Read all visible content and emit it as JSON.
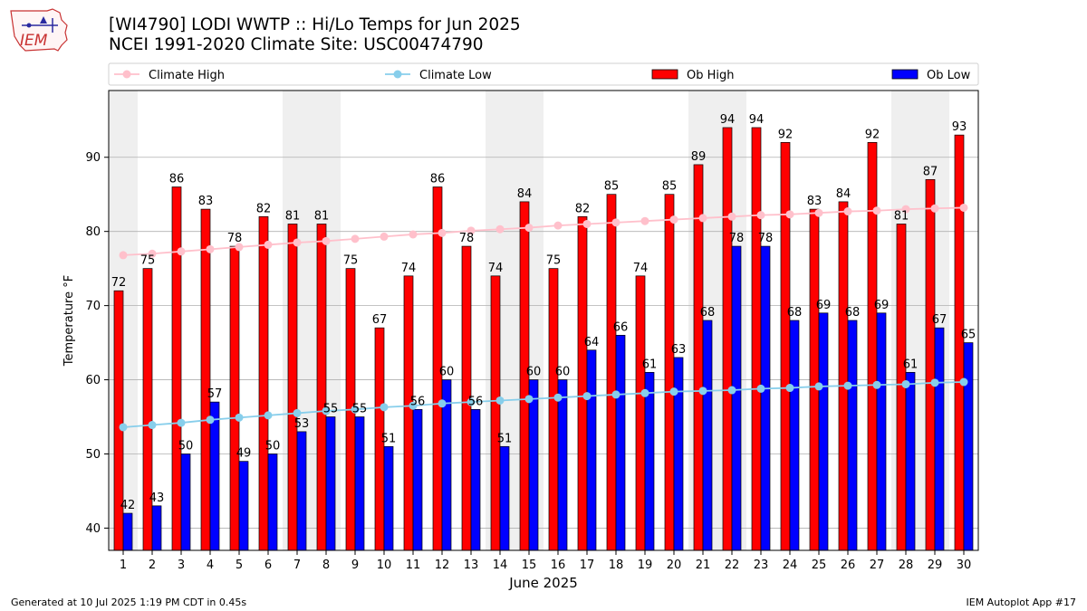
{
  "logo": {
    "text": "IEM"
  },
  "header": {
    "title": "[WI4790] LODI WWTP :: Hi/Lo Temps for Jun 2025",
    "subtitle": "NCEI 1991-2020 Climate Site: USC00474790"
  },
  "footer": {
    "generated": "Generated at 10 Jul 2025 1:19 PM CDT in 0.45s",
    "app": "IEM Autoplot App #17"
  },
  "chart_data": {
    "type": "bar",
    "xlabel": "June 2025",
    "ylabel": "Temperature °F",
    "ylim": [
      37,
      99
    ],
    "yticks": [
      40,
      50,
      60,
      70,
      80,
      90
    ],
    "grid": true,
    "legend_position": "top",
    "categories": [
      "1",
      "2",
      "3",
      "4",
      "5",
      "6",
      "7",
      "8",
      "9",
      "10",
      "11",
      "12",
      "13",
      "14",
      "15",
      "16",
      "17",
      "18",
      "19",
      "20",
      "21",
      "22",
      "23",
      "24",
      "25",
      "26",
      "27",
      "28",
      "29",
      "30"
    ],
    "shaded_weekend_days": [
      1,
      7,
      8,
      14,
      15,
      21,
      22,
      28,
      29
    ],
    "series": [
      {
        "name": "Ob High",
        "kind": "bar",
        "color": "#ff0000",
        "values": [
          72,
          75,
          86,
          83,
          78,
          82,
          81,
          81,
          75,
          67,
          74,
          86,
          78,
          74,
          84,
          75,
          82,
          85,
          74,
          85,
          89,
          94,
          94,
          92,
          83,
          84,
          92,
          81,
          87,
          93
        ]
      },
      {
        "name": "Ob Low",
        "kind": "bar",
        "color": "#0000ff",
        "values": [
          42,
          43,
          50,
          57,
          49,
          50,
          53,
          55,
          55,
          51,
          56,
          60,
          56,
          51,
          60,
          60,
          64,
          66,
          61,
          63,
          68,
          78,
          78,
          68,
          69,
          68,
          69,
          61,
          67,
          65
        ]
      },
      {
        "name": "Climate High",
        "kind": "line",
        "color": "#ffc0cb",
        "values": [
          76.8,
          77.0,
          77.3,
          77.6,
          77.9,
          78.2,
          78.5,
          78.7,
          79.0,
          79.3,
          79.6,
          79.8,
          80.1,
          80.3,
          80.5,
          80.8,
          81.0,
          81.2,
          81.4,
          81.6,
          81.8,
          82.0,
          82.2,
          82.3,
          82.5,
          82.7,
          82.8,
          83.0,
          83.1,
          83.2
        ]
      },
      {
        "name": "Climate Low",
        "kind": "line",
        "color": "#87ceeb",
        "values": [
          53.6,
          53.9,
          54.2,
          54.6,
          54.9,
          55.2,
          55.5,
          55.8,
          56.0,
          56.3,
          56.5,
          56.8,
          57.0,
          57.2,
          57.4,
          57.6,
          57.8,
          58.0,
          58.2,
          58.4,
          58.5,
          58.6,
          58.8,
          58.9,
          59.1,
          59.2,
          59.3,
          59.4,
          59.6,
          59.7
        ]
      }
    ]
  }
}
